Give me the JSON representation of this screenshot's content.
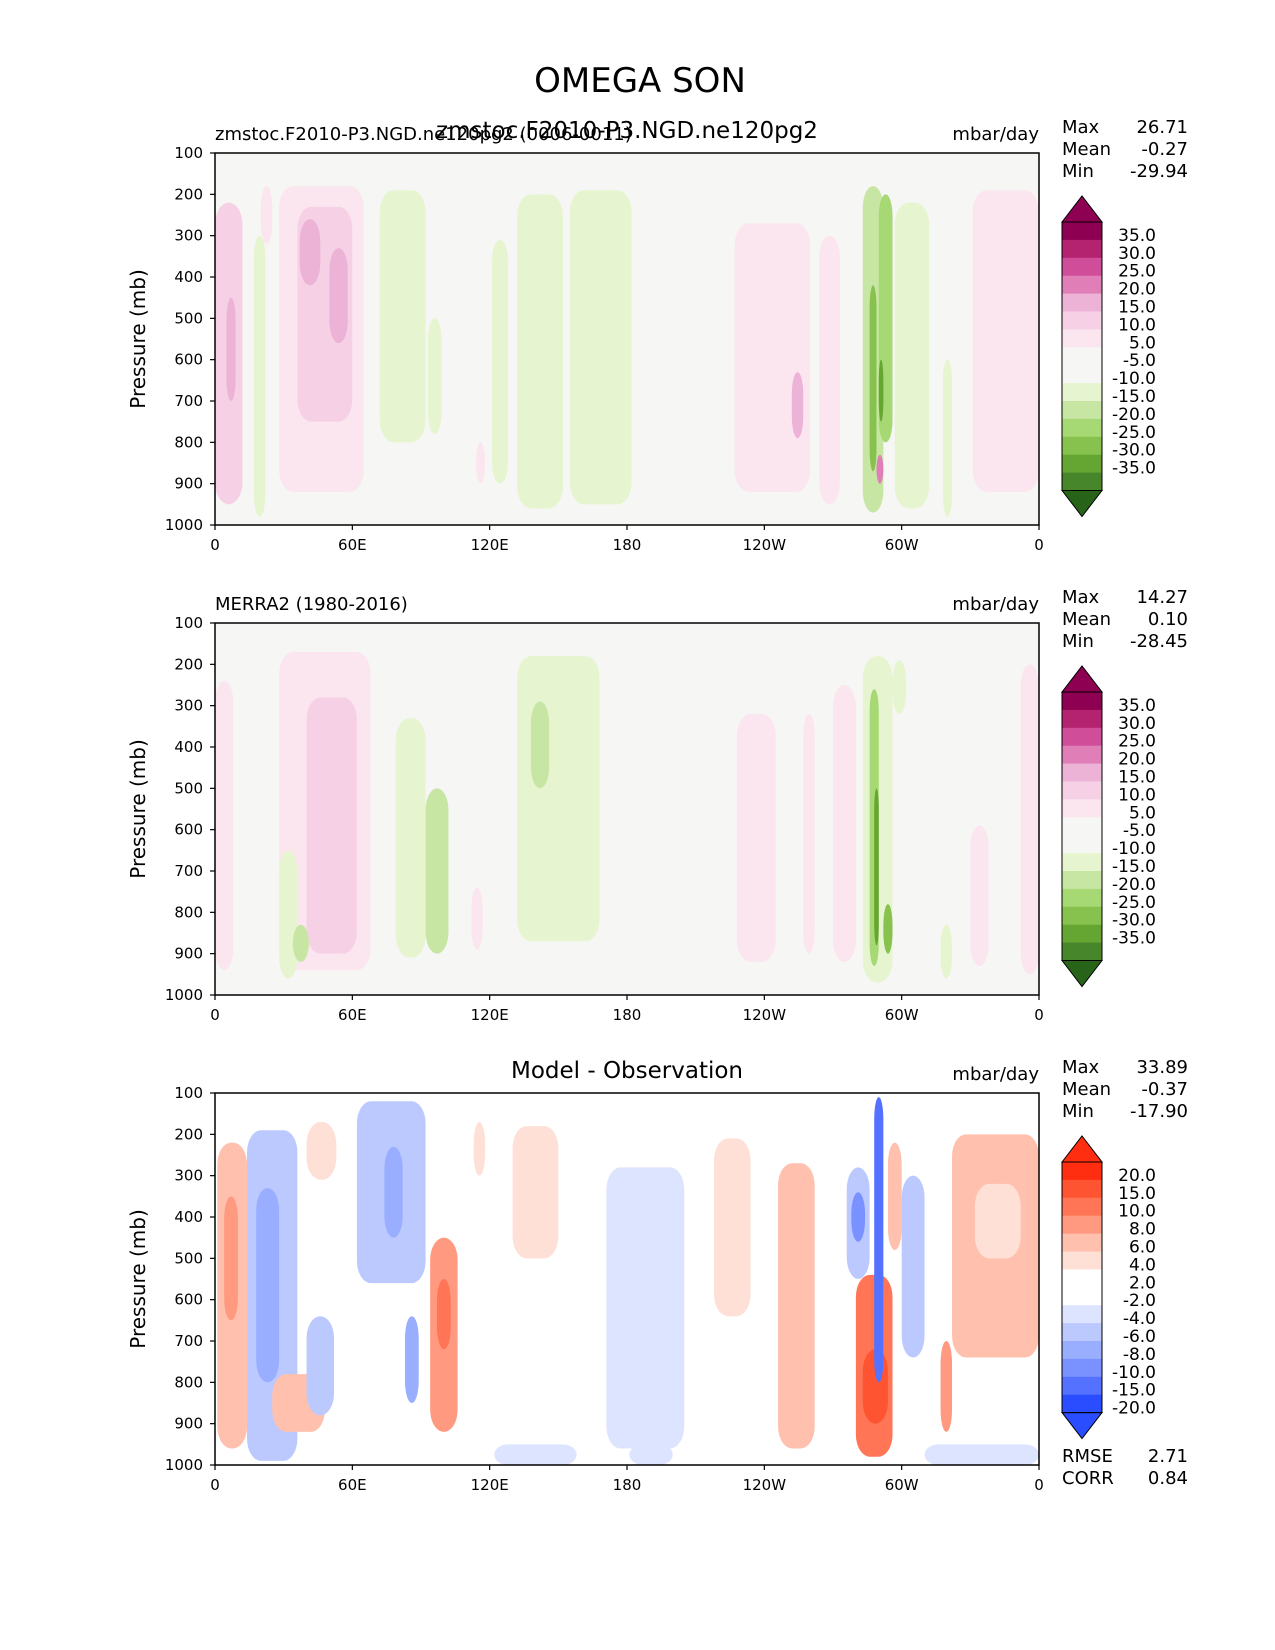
{
  "title": "OMEGA SON",
  "x_tick_labels": [
    "0",
    "60E",
    "120E",
    "180",
    "120W",
    "60W",
    "0"
  ],
  "y_tick_labels": [
    "100",
    "200",
    "300",
    "400",
    "500",
    "600",
    "700",
    "800",
    "900",
    "1000"
  ],
  "colors": {
    "background_field": "#f6f6f4",
    "pink": [
      "#fbe6f0",
      "#f6d1e6",
      "#edb3d6",
      "#e07fb7",
      "#cf4d99",
      "#b3236f",
      "#8e0152"
    ],
    "green": [
      "#e6f5d0",
      "#c7e6a3",
      "#a6d873",
      "#86c24d",
      "#65a532",
      "#47862a",
      "#276419"
    ],
    "red": [
      "#ffe0d6",
      "#ffc0ae",
      "#ff9a80",
      "#ff7555",
      "#ff5432",
      "#ff2e10"
    ],
    "blue": [
      "#dde4ff",
      "#bcc9ff",
      "#9aaeff",
      "#7a92ff",
      "#5472ff",
      "#2a4dff"
    ]
  },
  "chart_data": [
    {
      "type": "heatmap",
      "panel": "test",
      "left_title": "zmstoc.F2010-P3.NGD.ne120pg2 (0006-0011)",
      "center_title": "zmstoc.F2010-P3.NGD.ne120pg2",
      "units": "mbar/day",
      "ylabel": "Pressure (mb)",
      "ylim": [
        1000,
        100
      ],
      "xlim": [
        0,
        360
      ],
      "stats": {
        "max_label": "Max",
        "max": "26.71",
        "mean_label": "Mean",
        "mean": "-0.27",
        "min_label": "Min",
        "min": "-29.94"
      },
      "colorbar_labels": [
        "35.0",
        "30.0",
        "25.0",
        "20.0",
        "15.0",
        "10.0",
        "5.0",
        "-5.0",
        "-10.0",
        "-15.0",
        "-20.0",
        "-25.0",
        "-30.0",
        "-35.0"
      ],
      "features": [
        {
          "lon": [
            0,
            12
          ],
          "p": [
            220,
            950
          ],
          "level": "pink",
          "i": 1
        },
        {
          "lon": [
            5,
            9
          ],
          "p": [
            450,
            700
          ],
          "level": "pink",
          "i": 2
        },
        {
          "lon": [
            20,
            25
          ],
          "p": [
            180,
            320
          ],
          "level": "pink",
          "i": 0
        },
        {
          "lon": [
            28,
            65
          ],
          "p": [
            180,
            920
          ],
          "level": "pink",
          "i": 0
        },
        {
          "lon": [
            36,
            60
          ],
          "p": [
            230,
            750
          ],
          "level": "pink",
          "i": 1
        },
        {
          "lon": [
            37,
            46
          ],
          "p": [
            260,
            420
          ],
          "level": "pink",
          "i": 2
        },
        {
          "lon": [
            50,
            58
          ],
          "p": [
            330,
            560
          ],
          "level": "pink",
          "i": 2
        },
        {
          "lon": [
            17,
            22
          ],
          "p": [
            300,
            980
          ],
          "level": "green",
          "i": 0
        },
        {
          "lon": [
            72,
            92
          ],
          "p": [
            190,
            800
          ],
          "level": "green",
          "i": 0
        },
        {
          "lon": [
            93,
            99
          ],
          "p": [
            500,
            780
          ],
          "level": "green",
          "i": 0
        },
        {
          "lon": [
            121,
            128
          ],
          "p": [
            310,
            900
          ],
          "level": "green",
          "i": 0
        },
        {
          "lon": [
            132,
            152
          ],
          "p": [
            200,
            960
          ],
          "level": "green",
          "i": 0
        },
        {
          "lon": [
            155,
            182
          ],
          "p": [
            190,
            950
          ],
          "level": "green",
          "i": 0
        },
        {
          "lon": [
            114,
            118
          ],
          "p": [
            800,
            900
          ],
          "level": "pink",
          "i": 0
        },
        {
          "lon": [
            227,
            260
          ],
          "p": [
            270,
            920
          ],
          "level": "pink",
          "i": 0
        },
        {
          "lon": [
            252,
            257
          ],
          "p": [
            630,
            790
          ],
          "level": "pink",
          "i": 2
        },
        {
          "lon": [
            264,
            273
          ],
          "p": [
            300,
            950
          ],
          "level": "pink",
          "i": 0
        },
        {
          "lon": [
            283,
            292
          ],
          "p": [
            180,
            970
          ],
          "level": "green",
          "i": 1
        },
        {
          "lon": [
            286,
            289
          ],
          "p": [
            420,
            870
          ],
          "level": "green",
          "i": 3
        },
        {
          "lon": [
            290,
            296
          ],
          "p": [
            200,
            800
          ],
          "level": "green",
          "i": 2
        },
        {
          "lon": [
            290,
            292
          ],
          "p": [
            600,
            750
          ],
          "level": "green",
          "i": 4
        },
        {
          "lon": [
            297,
            312
          ],
          "p": [
            220,
            960
          ],
          "level": "green",
          "i": 0
        },
        {
          "lon": [
            289,
            292
          ],
          "p": [
            830,
            900
          ],
          "level": "pink",
          "i": 3
        },
        {
          "lon": [
            318,
            322
          ],
          "p": [
            600,
            980
          ],
          "level": "green",
          "i": 0
        },
        {
          "lon": [
            331,
            360
          ],
          "p": [
            190,
            920
          ],
          "level": "pink",
          "i": 0
        }
      ]
    },
    {
      "type": "heatmap",
      "panel": "reference",
      "left_title": "MERRA2 (1980-2016)",
      "units": "mbar/day",
      "ylabel": "Pressure (mb)",
      "ylim": [
        1000,
        100
      ],
      "xlim": [
        0,
        360
      ],
      "stats": {
        "max_label": "Max",
        "max": "14.27",
        "mean_label": "Mean",
        "mean": "0.10",
        "min_label": "Min",
        "min": "-28.45"
      },
      "colorbar_labels": [
        "35.0",
        "30.0",
        "25.0",
        "20.0",
        "15.0",
        "10.0",
        "5.0",
        "-5.0",
        "-10.0",
        "-15.0",
        "-20.0",
        "-25.0",
        "-30.0",
        "-35.0"
      ],
      "features": [
        {
          "lon": [
            0,
            8
          ],
          "p": [
            240,
            940
          ],
          "level": "pink",
          "i": 0
        },
        {
          "lon": [
            28,
            68
          ],
          "p": [
            170,
            940
          ],
          "level": "pink",
          "i": 0
        },
        {
          "lon": [
            40,
            62
          ],
          "p": [
            280,
            900
          ],
          "level": "pink",
          "i": 1
        },
        {
          "lon": [
            48,
            58
          ],
          "p": [
            300,
            700
          ],
          "level": "pink",
          "i": 1
        },
        {
          "lon": [
            28,
            36
          ],
          "p": [
            650,
            960
          ],
          "level": "green",
          "i": 0
        },
        {
          "lon": [
            34,
            41
          ],
          "p": [
            830,
            920
          ],
          "level": "green",
          "i": 1
        },
        {
          "lon": [
            79,
            92
          ],
          "p": [
            330,
            910
          ],
          "level": "green",
          "i": 0
        },
        {
          "lon": [
            92,
            102
          ],
          "p": [
            500,
            900
          ],
          "level": "green",
          "i": 1
        },
        {
          "lon": [
            112,
            117
          ],
          "p": [
            740,
            890
          ],
          "level": "pink",
          "i": 0
        },
        {
          "lon": [
            132,
            168
          ],
          "p": [
            180,
            870
          ],
          "level": "green",
          "i": 0
        },
        {
          "lon": [
            138,
            146
          ],
          "p": [
            290,
            500
          ],
          "level": "green",
          "i": 1
        },
        {
          "lon": [
            228,
            245
          ],
          "p": [
            320,
            920
          ],
          "level": "pink",
          "i": 0
        },
        {
          "lon": [
            257,
            262
          ],
          "p": [
            320,
            900
          ],
          "level": "pink",
          "i": 0
        },
        {
          "lon": [
            270,
            280
          ],
          "p": [
            250,
            920
          ],
          "level": "pink",
          "i": 0
        },
        {
          "lon": [
            283,
            296
          ],
          "p": [
            180,
            970
          ],
          "level": "green",
          "i": 0
        },
        {
          "lon": [
            286,
            290
          ],
          "p": [
            260,
            930
          ],
          "level": "green",
          "i": 2
        },
        {
          "lon": [
            288,
            290
          ],
          "p": [
            500,
            880
          ],
          "level": "green",
          "i": 4
        },
        {
          "lon": [
            292,
            296
          ],
          "p": [
            780,
            900
          ],
          "level": "green",
          "i": 3
        },
        {
          "lon": [
            296,
            302
          ],
          "p": [
            190,
            320
          ],
          "level": "green",
          "i": 0
        },
        {
          "lon": [
            317,
            322
          ],
          "p": [
            830,
            960
          ],
          "level": "green",
          "i": 0
        },
        {
          "lon": [
            330,
            338
          ],
          "p": [
            590,
            930
          ],
          "level": "pink",
          "i": 0
        },
        {
          "lon": [
            352,
            360
          ],
          "p": [
            200,
            950
          ],
          "level": "pink",
          "i": 0
        }
      ]
    },
    {
      "type": "heatmap",
      "panel": "difference",
      "center_title": "Model - Observation",
      "units": "mbar/day",
      "ylabel": "Pressure (mb)",
      "ylim": [
        1000,
        100
      ],
      "xlim": [
        0,
        360
      ],
      "stats": {
        "max_label": "Max",
        "max": "33.89",
        "mean_label": "Mean",
        "mean": "-0.37",
        "min_label": "Min",
        "min": "-17.90"
      },
      "metrics": {
        "rmse_label": "RMSE",
        "rmse": "2.71",
        "corr_label": "CORR",
        "corr": "0.84"
      },
      "colorbar_labels": [
        "20.0",
        "15.0",
        "10.0",
        "8.0",
        "6.0",
        "4.0",
        "2.0",
        "-2.0",
        "-4.0",
        "-6.0",
        "-8.0",
        "-10.0",
        "-15.0",
        "-20.0"
      ],
      "features": [
        {
          "lon": [
            1,
            14
          ],
          "p": [
            220,
            960
          ],
          "level": "red",
          "i": 1
        },
        {
          "lon": [
            4,
            10
          ],
          "p": [
            350,
            650
          ],
          "level": "red",
          "i": 2
        },
        {
          "lon": [
            14,
            36
          ],
          "p": [
            190,
            990
          ],
          "level": "blue",
          "i": 1
        },
        {
          "lon": [
            18,
            28
          ],
          "p": [
            330,
            800
          ],
          "level": "blue",
          "i": 2
        },
        {
          "lon": [
            25,
            48
          ],
          "p": [
            780,
            920
          ],
          "level": "red",
          "i": 1
        },
        {
          "lon": [
            40,
            52
          ],
          "p": [
            640,
            880
          ],
          "level": "blue",
          "i": 1
        },
        {
          "lon": [
            40,
            53
          ],
          "p": [
            170,
            310
          ],
          "level": "red",
          "i": 0
        },
        {
          "lon": [
            62,
            92
          ],
          "p": [
            120,
            560
          ],
          "level": "blue",
          "i": 1
        },
        {
          "lon": [
            74,
            82
          ],
          "p": [
            230,
            450
          ],
          "level": "blue",
          "i": 2
        },
        {
          "lon": [
            83,
            89
          ],
          "p": [
            640,
            850
          ],
          "level": "blue",
          "i": 2
        },
        {
          "lon": [
            94,
            106
          ],
          "p": [
            450,
            920
          ],
          "level": "red",
          "i": 2
        },
        {
          "lon": [
            97,
            103
          ],
          "p": [
            550,
            720
          ],
          "level": "red",
          "i": 3
        },
        {
          "lon": [
            113,
            118
          ],
          "p": [
            170,
            300
          ],
          "level": "red",
          "i": 0
        },
        {
          "lon": [
            130,
            150
          ],
          "p": [
            180,
            500
          ],
          "level": "red",
          "i": 0
        },
        {
          "lon": [
            122,
            158
          ],
          "p": [
            950,
            1000
          ],
          "level": "blue",
          "i": 0
        },
        {
          "lon": [
            171,
            205
          ],
          "p": [
            280,
            960
          ],
          "level": "blue",
          "i": 0
        },
        {
          "lon": [
            181,
            200
          ],
          "p": [
            950,
            1000
          ],
          "level": "blue",
          "i": 0
        },
        {
          "lon": [
            218,
            234
          ],
          "p": [
            210,
            640
          ],
          "level": "red",
          "i": 0
        },
        {
          "lon": [
            246,
            262
          ],
          "p": [
            270,
            960
          ],
          "level": "red",
          "i": 1
        },
        {
          "lon": [
            276,
            286
          ],
          "p": [
            280,
            550
          ],
          "level": "blue",
          "i": 1
        },
        {
          "lon": [
            278,
            284
          ],
          "p": [
            340,
            460
          ],
          "level": "blue",
          "i": 3
        },
        {
          "lon": [
            280,
            296
          ],
          "p": [
            540,
            980
          ],
          "level": "red",
          "i": 3
        },
        {
          "lon": [
            283,
            294
          ],
          "p": [
            720,
            900
          ],
          "level": "red",
          "i": 4
        },
        {
          "lon": [
            288,
            292
          ],
          "p": [
            110,
            800
          ],
          "level": "blue",
          "i": 4
        },
        {
          "lon": [
            294,
            300
          ],
          "p": [
            220,
            480
          ],
          "level": "red",
          "i": 1
        },
        {
          "lon": [
            300,
            310
          ],
          "p": [
            300,
            740
          ],
          "level": "blue",
          "i": 1
        },
        {
          "lon": [
            317,
            322
          ],
          "p": [
            700,
            920
          ],
          "level": "red",
          "i": 2
        },
        {
          "lon": [
            322,
            360
          ],
          "p": [
            200,
            740
          ],
          "level": "red",
          "i": 1
        },
        {
          "lon": [
            332,
            352
          ],
          "p": [
            320,
            500
          ],
          "level": "red",
          "i": 0
        },
        {
          "lon": [
            310,
            360
          ],
          "p": [
            950,
            1000
          ],
          "level": "blue",
          "i": 0
        }
      ]
    }
  ]
}
